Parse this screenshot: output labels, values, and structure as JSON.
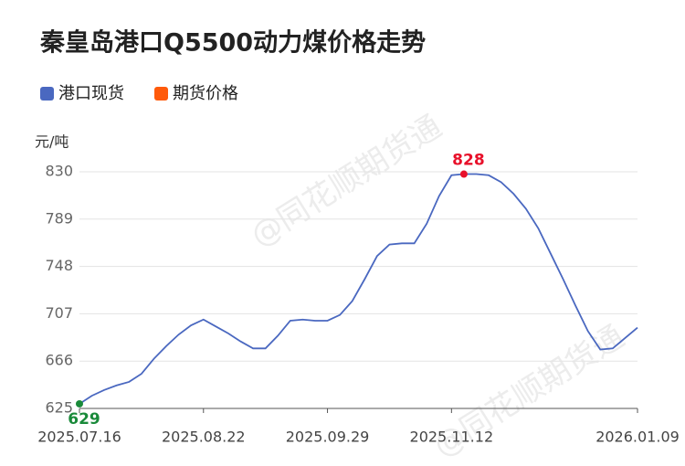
{
  "chart_data": {
    "type": "line",
    "title": "秦皇岛港口Q5500动力煤价格走势",
    "y_unit": "元/吨",
    "watermark": "@同花顺期货通",
    "categories": [
      "2025.07.16",
      null,
      null,
      null,
      null,
      null,
      null,
      null,
      null,
      null,
      "2025.08.22",
      null,
      null,
      null,
      null,
      null,
      null,
      null,
      null,
      null,
      "2025.09.29",
      null,
      null,
      null,
      null,
      null,
      null,
      null,
      null,
      null,
      "2025.11.12",
      null,
      null,
      null,
      null,
      null,
      null,
      null,
      null,
      null,
      null,
      null,
      null,
      null,
      null,
      "2026.01.09"
    ],
    "series": [
      {
        "name": "港口现货",
        "color": "#4a68c0",
        "values": [
          629,
          636,
          641,
          645,
          648,
          655,
          668,
          679,
          689,
          697,
          702,
          696,
          690,
          683,
          677,
          677,
          688,
          701,
          702,
          701,
          701,
          706,
          718,
          737,
          757,
          767,
          768,
          768,
          785,
          809,
          827,
          828,
          828,
          827,
          821,
          811,
          798,
          781,
          759,
          737,
          714,
          692,
          676,
          677,
          686,
          695
        ]
      },
      {
        "name": "期货价格",
        "color": "#ff5a0a",
        "values": [
          null,
          null,
          null,
          null,
          null,
          null,
          null,
          null,
          null,
          null,
          null,
          null,
          null,
          null,
          null,
          null,
          null,
          null,
          null,
          null,
          null,
          null,
          null,
          null,
          null,
          null,
          null,
          null,
          null,
          null,
          null,
          null,
          null,
          null,
          null,
          null,
          null,
          null,
          null,
          null,
          null,
          null,
          null,
          null,
          null,
          null
        ]
      }
    ],
    "ylim": [
      625,
      830
    ],
    "yticks": [
      625,
      666,
      707,
      748,
      789,
      830
    ],
    "grid": true
  }
}
